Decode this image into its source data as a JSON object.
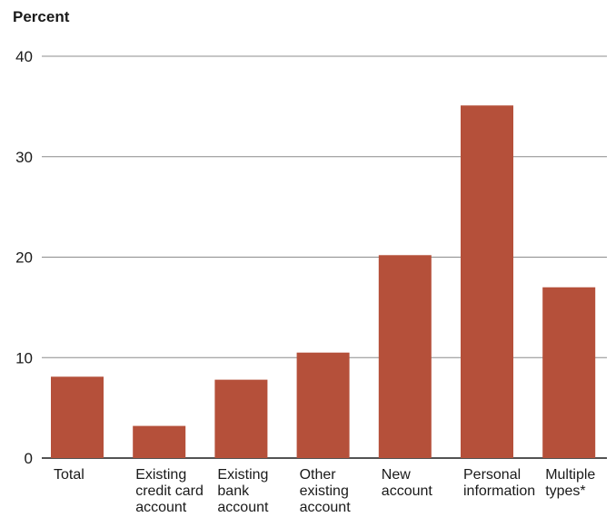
{
  "chart_data": {
    "type": "bar",
    "title": "",
    "ylabel": "Percent",
    "xlabel": "",
    "ylim": [
      0,
      40
    ],
    "yticks": [
      0,
      10,
      20,
      30,
      40
    ],
    "grid": true,
    "bar_color": "#b5503a",
    "categories": [
      [
        "Total"
      ],
      [
        "Existing",
        "credit card",
        "account"
      ],
      [
        "Existing",
        "bank",
        "account"
      ],
      [
        "Other",
        "existing",
        "account"
      ],
      [
        "New",
        "account"
      ],
      [
        "Personal",
        "information"
      ],
      [
        "Multiple",
        "types*"
      ]
    ],
    "values": [
      8.1,
      3.2,
      7.8,
      10.5,
      20.2,
      35.1,
      17.0
    ]
  }
}
